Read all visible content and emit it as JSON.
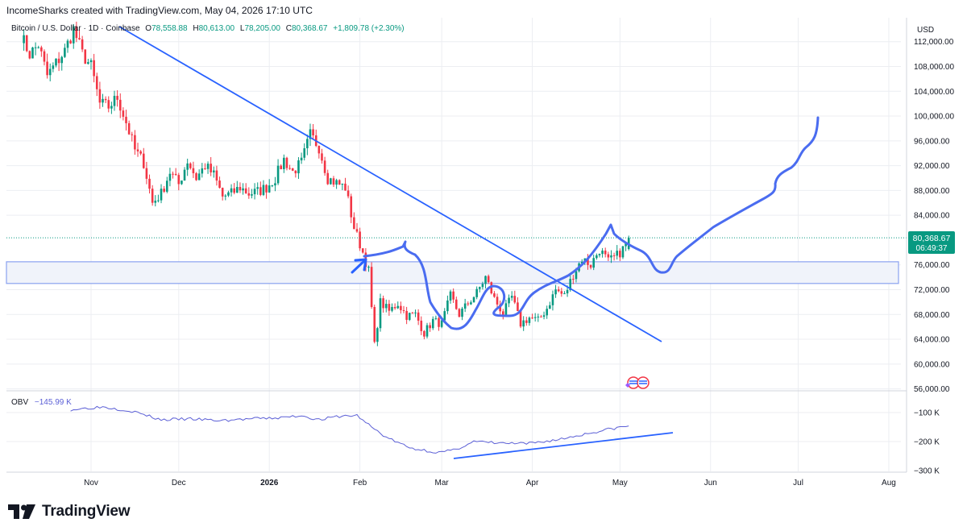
{
  "header": {
    "attribution": "IncomeSharks created with TradingView.com, May 04, 2026 17:10 UTC"
  },
  "legend": {
    "symbol": "Bitcoin / U.S. Dollar · 1D · Coinbase",
    "open_label": "O",
    "open": "78,558.88",
    "high_label": "H",
    "high": "80,613.00",
    "low_label": "L",
    "low": "78,205.00",
    "close_label": "C",
    "close": "80,368.67",
    "change": "+1,809.78 (+2.30%)"
  },
  "price_axis": {
    "currency": "USD",
    "ticks": [
      "112,000.00",
      "108,000.00",
      "104,000.00",
      "100,000.00",
      "96,000.00",
      "92,000.00",
      "88,000.00",
      "84,000.00",
      "76,000.00",
      "72,000.00",
      "68,000.00",
      "64,000.00",
      "60,000.00",
      "56,000.00"
    ],
    "last_price_label": "80,368.67",
    "countdown_label": "06:49:37"
  },
  "obv": {
    "label": "OBV",
    "value": "−145.99 K",
    "ticks": [
      "−100 K",
      "−200 K",
      "−300 K"
    ]
  },
  "time_axis": {
    "ticks": [
      "Nov",
      "Dec",
      "2026",
      "Feb",
      "Mar",
      "Apr",
      "May",
      "Jun",
      "Jul",
      "Aug"
    ]
  },
  "footer": {
    "brand": "TradingView"
  },
  "colors": {
    "up": "#089981",
    "down": "#f23645",
    "drawing": "#2962ff",
    "drawing_curve": "#4a6cf0",
    "obv_line": "#5b5fd6",
    "last_price_bg": "#089981",
    "zone_border": "#8aa2ef",
    "zone_fill": "#f0f3fa",
    "grid": "#eceef2",
    "text": "#131722"
  },
  "chart_data": [
    {
      "type": "candlestick",
      "title": "Bitcoin / U.S. Dollar · 1D · Coinbase",
      "ylabel": "USD",
      "ylim": [
        55000,
        115000
      ],
      "x_ticks": [
        "Nov",
        "Dec",
        "2026",
        "Feb",
        "Mar",
        "Apr",
        "May",
        "Jun",
        "Jul",
        "Aug"
      ],
      "last_close": 80368.67,
      "support_zone": [
        73000,
        76500
      ],
      "series": [
        {
          "name": "Bitcoin / U.S. Dollar",
          "keypoints": [
            [
              "2025-10-08",
              113000
            ],
            [
              "2025-10-11",
              110000
            ],
            [
              "2025-10-14",
              111500
            ],
            [
              "2025-10-17",
              106500
            ],
            [
              "2025-10-20",
              108500
            ],
            [
              "2025-10-23",
              110500
            ],
            [
              "2025-10-26",
              114000
            ],
            [
              "2025-10-29",
              110000
            ],
            [
              "2025-11-01",
              108000
            ],
            [
              "2025-11-04",
              102000
            ],
            [
              "2025-11-07",
              101500
            ],
            [
              "2025-11-10",
              103000
            ],
            [
              "2025-11-13",
              99000
            ],
            [
              "2025-11-16",
              94500
            ],
            [
              "2025-11-19",
              92500
            ],
            [
              "2025-11-22",
              86000
            ],
            [
              "2025-11-25",
              87500
            ],
            [
              "2025-11-28",
              91000
            ],
            [
              "2025-12-01",
              89000
            ],
            [
              "2025-12-04",
              92800
            ],
            [
              "2025-12-07",
              90000
            ],
            [
              "2025-12-10",
              92000
            ],
            [
              "2025-12-13",
              90500
            ],
            [
              "2025-12-16",
              87000
            ],
            [
              "2025-12-19",
              87500
            ],
            [
              "2025-12-22",
              88500
            ],
            [
              "2025-12-25",
              87500
            ],
            [
              "2025-12-28",
              87800
            ],
            [
              "2025-12-31",
              88500
            ],
            [
              "2026-01-03",
              90000
            ],
            [
              "2026-01-06",
              93000
            ],
            [
              "2026-01-09",
              91000
            ],
            [
              "2026-01-12",
              92500
            ],
            [
              "2026-01-15",
              97000
            ],
            [
              "2026-01-18",
              95000
            ],
            [
              "2026-01-21",
              90000
            ],
            [
              "2026-01-24",
              89200
            ],
            [
              "2026-01-27",
              88500
            ],
            [
              "2026-01-30",
              82000
            ],
            [
              "2026-02-02",
              78000
            ],
            [
              "2026-02-04",
              75000
            ],
            [
              "2026-02-06",
              63000
            ],
            [
              "2026-02-08",
              70000
            ],
            [
              "2026-02-11",
              68500
            ],
            [
              "2026-02-14",
              69800
            ],
            [
              "2026-02-17",
              67800
            ],
            [
              "2026-02-20",
              68000
            ],
            [
              "2026-02-23",
              65000
            ],
            [
              "2026-02-26",
              67000
            ],
            [
              "2026-03-01",
              66500
            ],
            [
              "2026-03-04",
              71000
            ],
            [
              "2026-03-07",
              68000
            ],
            [
              "2026-03-10",
              69800
            ],
            [
              "2026-03-13",
              71500
            ],
            [
              "2026-03-16",
              74000
            ],
            [
              "2026-03-19",
              70500
            ],
            [
              "2026-03-22",
              68200
            ],
            [
              "2026-03-25",
              70800
            ],
            [
              "2026-03-28",
              66500
            ],
            [
              "2026-03-31",
              67500
            ],
            [
              "2026-04-03",
              67000
            ],
            [
              "2026-04-06",
              69000
            ],
            [
              "2026-04-09",
              72000
            ],
            [
              "2026-04-12",
              71000
            ],
            [
              "2026-04-15",
              74500
            ],
            [
              "2026-04-18",
              77000
            ],
            [
              "2026-04-21",
              76000
            ],
            [
              "2026-04-24",
              78500
            ],
            [
              "2026-04-27",
              76500
            ],
            [
              "2026-04-30",
              77500
            ],
            [
              "2026-05-02",
              78558.88
            ],
            [
              "2026-05-04",
              80368.67
            ]
          ]
        },
        {
          "name": "OBV",
          "keypoints": [
            [
              "2025-10-25",
              -90
            ],
            [
              "2025-11-05",
              -80
            ],
            [
              "2025-11-15",
              -95
            ],
            [
              "2025-11-25",
              -125
            ],
            [
              "2025-12-05",
              -122
            ],
            [
              "2025-12-15",
              -128
            ],
            [
              "2025-12-25",
              -122
            ],
            [
              "2026-01-05",
              -118
            ],
            [
              "2026-01-12",
              -110
            ],
            [
              "2026-01-18",
              -125
            ],
            [
              "2026-01-25",
              -113
            ],
            [
              "2026-01-31",
              -110
            ],
            [
              "2026-02-05",
              -150
            ],
            [
              "2026-02-10",
              -185
            ],
            [
              "2026-02-18",
              -222
            ],
            [
              "2026-02-28",
              -238
            ],
            [
              "2026-03-05",
              -230
            ],
            [
              "2026-03-12",
              -200
            ],
            [
              "2026-03-20",
              -205
            ],
            [
              "2026-03-30",
              -208
            ],
            [
              "2026-04-10",
              -193
            ],
            [
              "2026-04-20",
              -172
            ],
            [
              "2026-04-27",
              -158
            ],
            [
              "2026-05-04",
              -145.99
            ]
          ]
        }
      ]
    }
  ]
}
